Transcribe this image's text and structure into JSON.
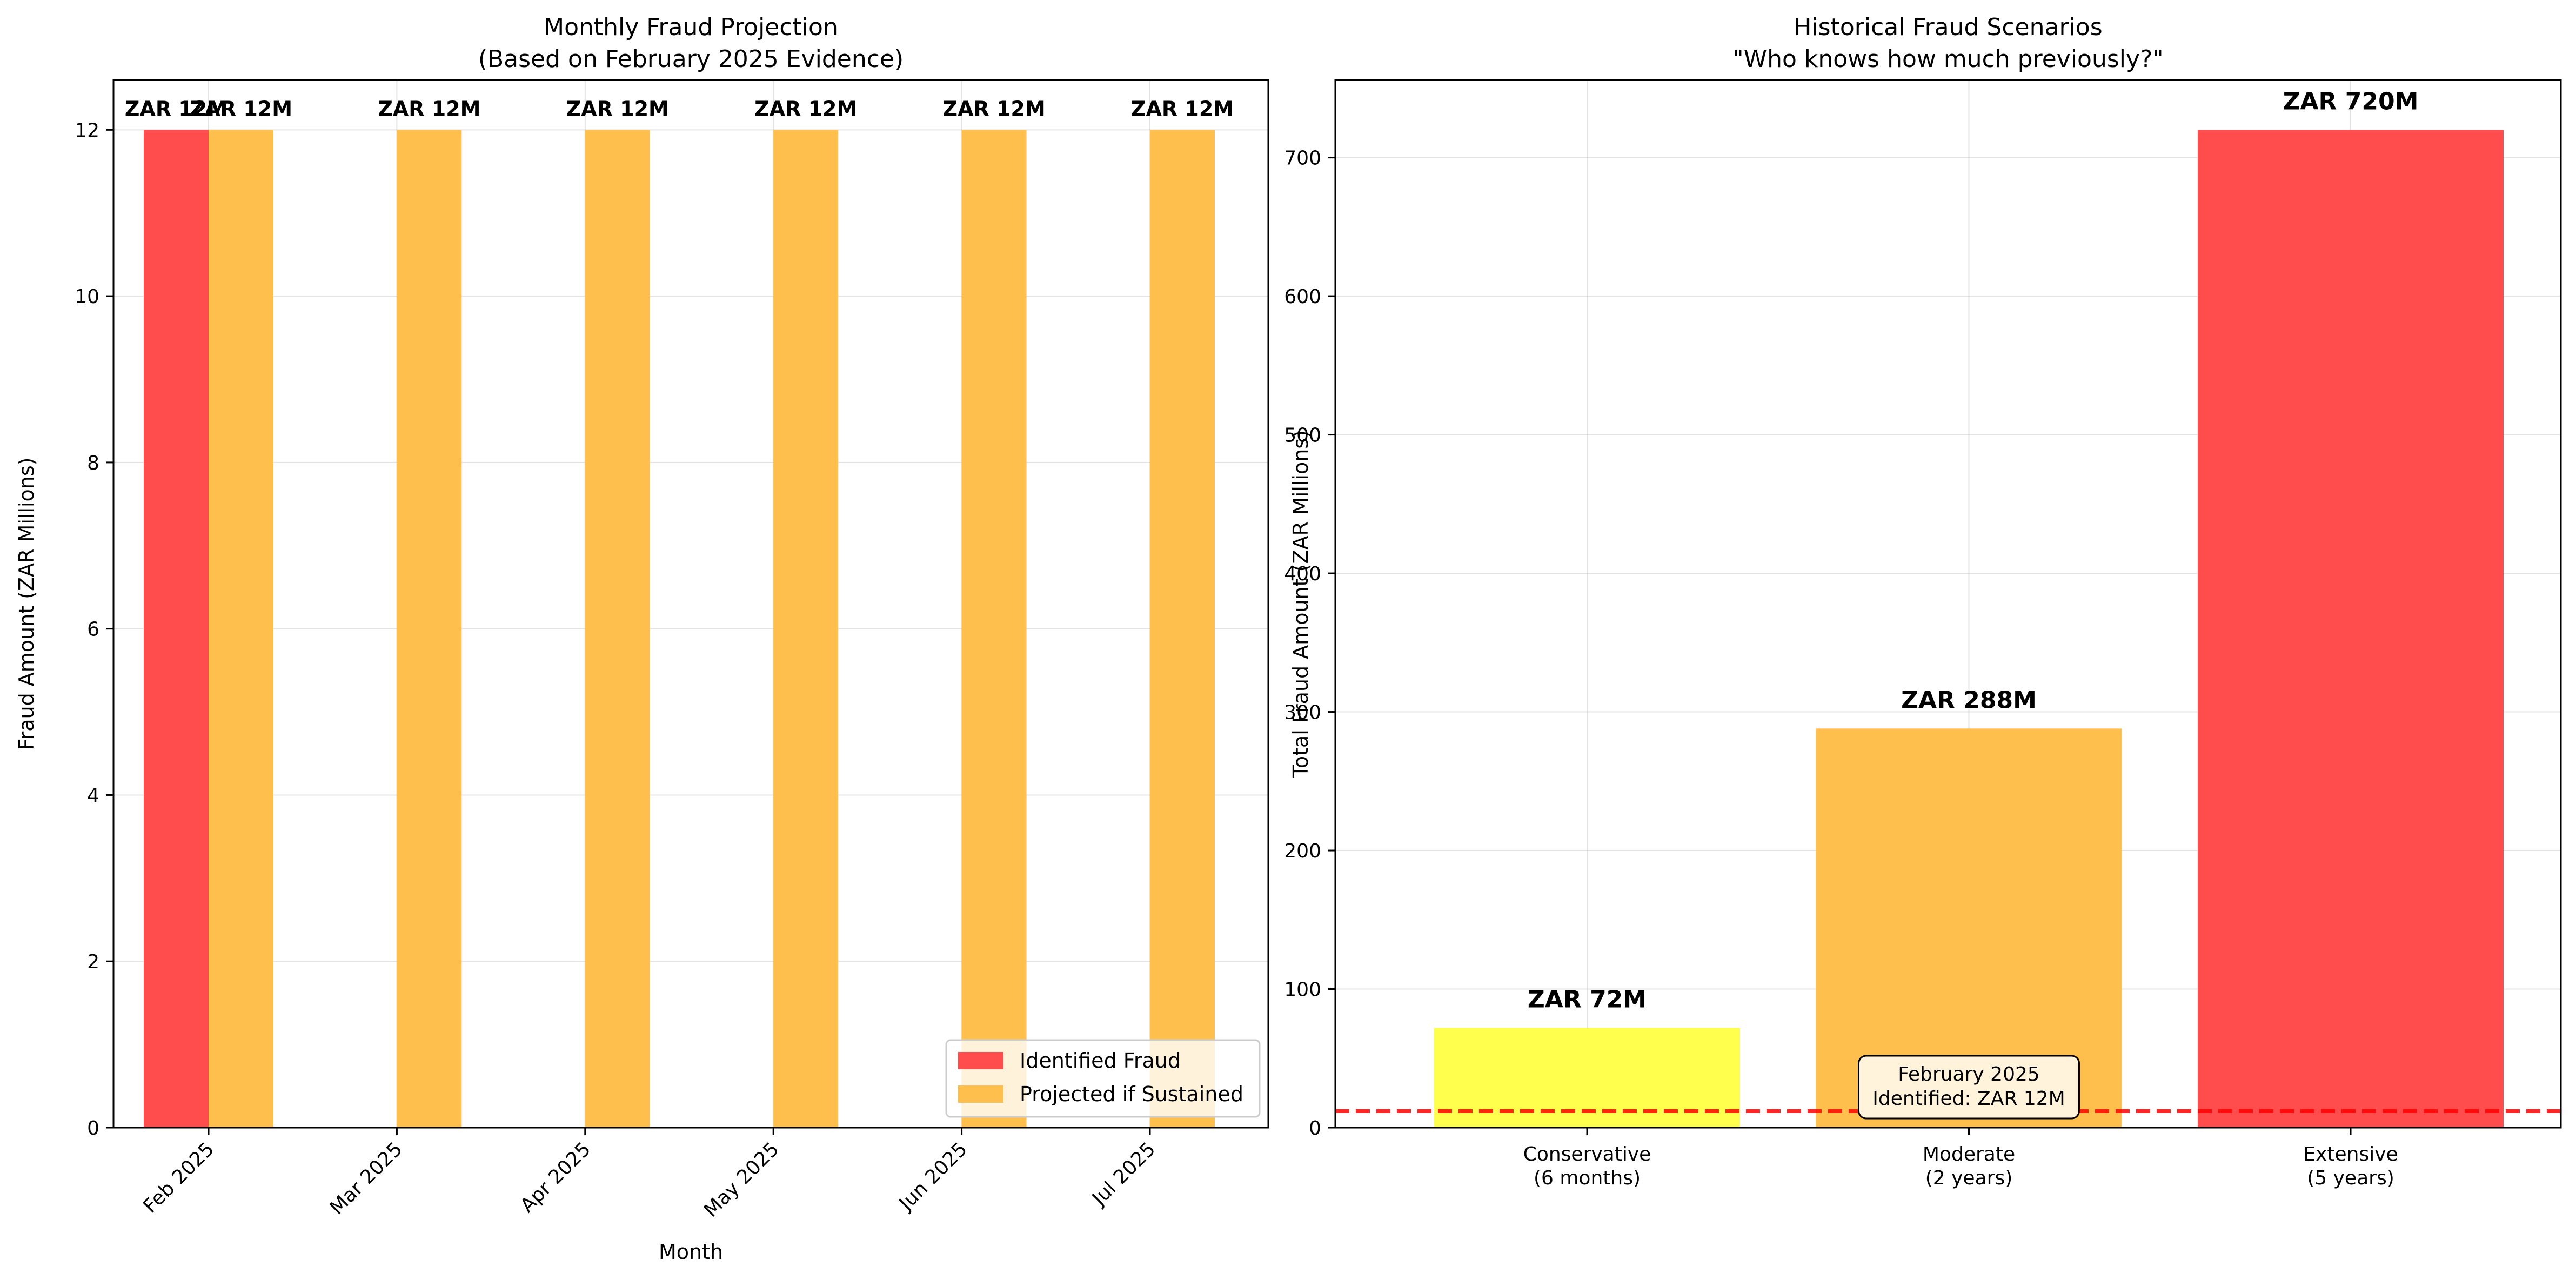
{
  "chart_data": [
    {
      "type": "bar",
      "title": "Monthly Fraud Projection",
      "subtitle": "(Based on February 2025 Evidence)",
      "xlabel": "Month",
      "ylabel": "Fraud Amount (ZAR Millions)",
      "categories": [
        "Feb 2025",
        "Mar 2025",
        "Apr 2025",
        "May 2025",
        "Jun 2025",
        "Jul 2025"
      ],
      "series": [
        {
          "name": "Identified Fraud",
          "color": "#ff4d4d",
          "values": [
            12,
            null,
            null,
            null,
            null,
            null
          ],
          "labels": [
            "ZAR 12M",
            "",
            "",
            "",
            "",
            ""
          ]
        },
        {
          "name": "Projected if Sustained",
          "color": "#ffbf4d",
          "values": [
            12,
            12,
            12,
            12,
            12,
            12
          ],
          "labels": [
            "ZAR 12M",
            "ZAR 12M",
            "ZAR 12M",
            "ZAR 12M",
            "ZAR 12M",
            "ZAR 12M"
          ]
        }
      ],
      "ylim": [
        0,
        12.6
      ],
      "yticks": [
        0,
        2,
        4,
        6,
        8,
        10,
        12
      ],
      "grid": true,
      "legend": "lower-right"
    },
    {
      "type": "bar",
      "title": "Historical Fraud Scenarios",
      "subtitle": "\"Who knows how much previously?\"",
      "xlabel": "",
      "ylabel": "Total Fraud Amount (ZAR Millions)",
      "categories": [
        "Conservative\n(6 months)",
        "Moderate\n(2 years)",
        "Extensive\n(5 years)"
      ],
      "values": [
        72,
        288,
        720
      ],
      "colors": [
        "#ffff4d",
        "#ffbf4d",
        "#ff4d4d"
      ],
      "labels": [
        "ZAR 72M",
        "ZAR 288M",
        "ZAR 720M"
      ],
      "ylim": [
        0,
        756
      ],
      "yticks": [
        0,
        100,
        200,
        300,
        400,
        500,
        600,
        700
      ],
      "grid": true,
      "reference_line": {
        "value": 12,
        "color": "#ff0000",
        "style": "dashed"
      },
      "annotation": "February 2025\nIdentified: ZAR 12M"
    }
  ]
}
